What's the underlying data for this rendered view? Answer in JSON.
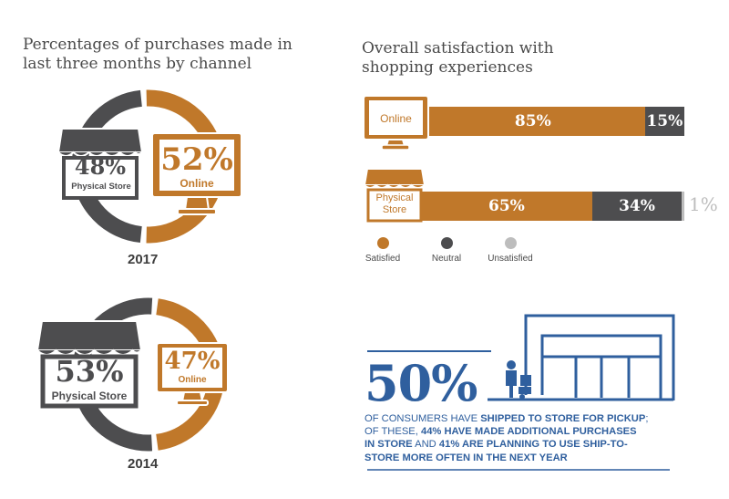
{
  "colors": {
    "online": "#c0782a",
    "store": "#4d4d4f",
    "unsatisfied": "#bdbdbd",
    "blue": "#2f5f9e"
  },
  "left_title": "Percentages of purchases made in\nlast three months by channel",
  "right_title": "Overall satisfaction with\nshopping experiences",
  "chart_data": [
    {
      "type": "pie",
      "title": "2017",
      "categories": [
        "Physical Store",
        "Online"
      ],
      "values": [
        48,
        52
      ]
    },
    {
      "type": "pie",
      "title": "2014",
      "categories": [
        "Physical Store",
        "Online"
      ],
      "values": [
        53,
        47
      ]
    },
    {
      "type": "bar",
      "orientation": "horizontal",
      "stacked": true,
      "categories": [
        "Online",
        "Physical Store"
      ],
      "series": [
        {
          "name": "Satisfied",
          "values": [
            85,
            65
          ]
        },
        {
          "name": "Neutral",
          "values": [
            15,
            34
          ]
        },
        {
          "name": "Unsatisfied",
          "values": [
            0,
            1
          ]
        }
      ],
      "legend": "bottom-left"
    }
  ],
  "donut_2017": {
    "store_pct": "48%",
    "store_label": "Physical Store",
    "online_pct": "52%",
    "online_label": "Online",
    "year": "2017"
  },
  "donut_2014": {
    "store_pct": "53%",
    "store_label": "Physical Store",
    "online_pct": "47%",
    "online_label": "Online",
    "year": "2014"
  },
  "bars": {
    "online_label": "Online",
    "store_label_1": "Physical",
    "store_label_2": "Store",
    "online_satisfied": "85%",
    "online_neutral": "15%",
    "store_satisfied": "65%",
    "store_neutral": "34%",
    "store_unsatisfied": "1%"
  },
  "legend": {
    "satisfied": "Satisfied",
    "neutral": "Neutral",
    "unsatisfied": "Unsatisfied"
  },
  "stat": {
    "big": "50%",
    "t1": "of consumers have ",
    "b1": "shipped to store for pickup",
    "t2": ";",
    "t3": "of these, ",
    "b2": "44% have made additional purchases",
    "b3": "in store",
    "t4": " and ",
    "b4": "41% are planning to use ship-to-",
    "b5": "store more often in the next year"
  }
}
